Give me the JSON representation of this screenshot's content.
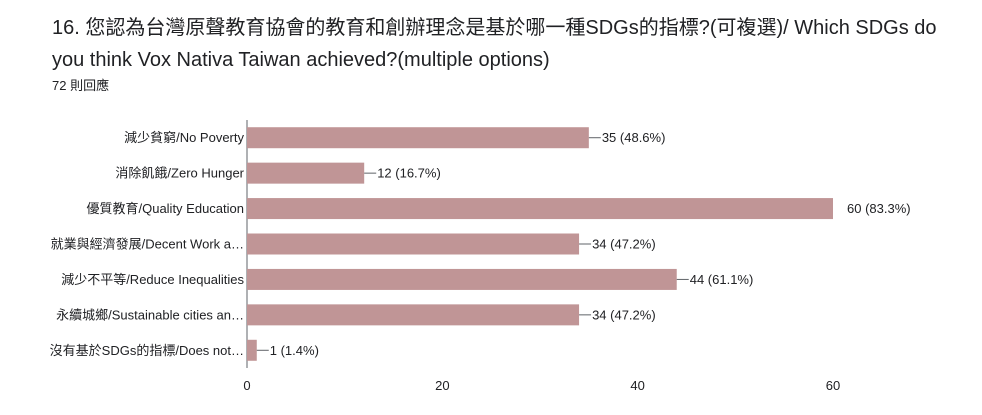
{
  "question": {
    "title": "16. 您認為台灣原聲教育協會的教育和創辦理念是基於哪一種SDGs的指標?(可複選)/ Which SDGs do you think Vox Nativa Taiwan achieved?(multiple options)",
    "response_count": "72 則回應"
  },
  "colors": {
    "bar": "#c09596",
    "axis": "#5f6368",
    "gridline": "#e0e0e0"
  },
  "chart_data": {
    "type": "bar",
    "orientation": "horizontal",
    "categories": [
      "減少貧窮/No Poverty",
      "消除飢餓/Zero Hunger",
      "優質教育/Quality Education",
      "就業與經濟發展/Decent Work a…",
      "減少不平等/Reduce Inequalities",
      "永續城鄉/Sustainable cities an…",
      "沒有基於SDGs的指標/Does not…"
    ],
    "values": [
      35,
      12,
      60,
      34,
      44,
      34,
      1
    ],
    "value_labels": [
      "35 (48.6%)",
      "12 (16.7%)",
      "60 (83.3%)",
      "34 (47.2%)",
      "44 (61.1%)",
      "34 (47.2%)",
      "1 (1.4%)"
    ],
    "xlim": [
      0,
      60
    ],
    "xticks": [
      0,
      20,
      40,
      60
    ],
    "xtick_labels": [
      "0",
      "20",
      "40",
      "60"
    ],
    "grid": false
  }
}
